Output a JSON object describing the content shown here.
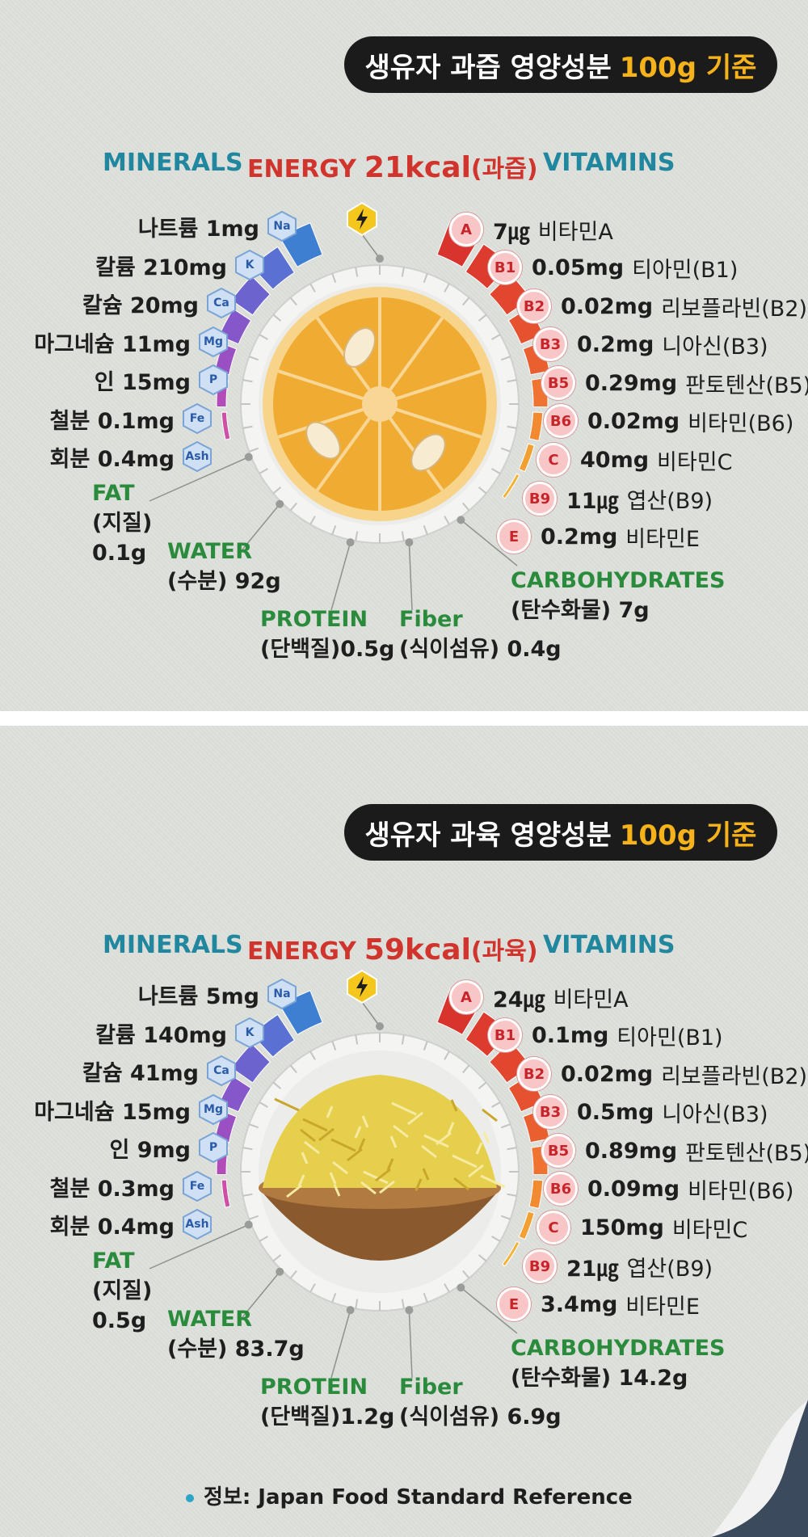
{
  "sections": [
    {
      "id": "juice",
      "title_main": "생유자 과즙 영양성분",
      "title_basis": "100g 기준",
      "header": {
        "minerals": "MINERALS",
        "energy_label": "ENERGY",
        "energy_value": "21kcal",
        "energy_note": "(과즙)",
        "vitamins": "VITAMINS"
      },
      "minerals": [
        {
          "badge": "Na",
          "label": "나트륨 1mg"
        },
        {
          "badge": "K",
          "label": "칼륨 210mg"
        },
        {
          "badge": "Ca",
          "label": "칼슘 20mg"
        },
        {
          "badge": "Mg",
          "label": "마그네슘 11mg"
        },
        {
          "badge": "P",
          "label": "인 15mg"
        },
        {
          "badge": "Fe",
          "label": "철분 0.1mg"
        },
        {
          "badge": "Ash",
          "label": "회분 0.4mg"
        }
      ],
      "vitamins": [
        {
          "badge": "A",
          "value": "7㎍",
          "name": "비타민A"
        },
        {
          "badge": "B1",
          "value": "0.05mg",
          "name": "티아민(B1)"
        },
        {
          "badge": "B2",
          "value": "0.02mg",
          "name": "리보플라빈(B2)"
        },
        {
          "badge": "B3",
          "value": "0.2mg",
          "name": "니아신(B3)"
        },
        {
          "badge": "B5",
          "value": "0.29mg",
          "name": "판토텐산(B5)"
        },
        {
          "badge": "B6",
          "value": "0.02mg",
          "name": "비타민(B6)"
        },
        {
          "badge": "C",
          "value": "40mg",
          "name": "비타민C"
        },
        {
          "badge": "B9",
          "value": "11㎍",
          "name": "엽산(B9)"
        },
        {
          "badge": "E",
          "value": "0.2mg",
          "name": "비타민E"
        }
      ],
      "fat": {
        "name": "FAT",
        "sub": "(지질)",
        "value": "0.1g"
      },
      "water": {
        "name": "WATER",
        "value": "(수분) 92g"
      },
      "protein": {
        "name": "PROTEIN",
        "value": "(단백질)0.5g"
      },
      "fiber": {
        "name": "Fiber",
        "value": "(식이섬유) 0.4g"
      },
      "carbs": {
        "name": "CARBOHYDRATES",
        "value": "(탄수화물) 7g"
      }
    },
    {
      "id": "flesh",
      "title_main": "생유자 과육 영양성분",
      "title_basis": "100g 기준",
      "header": {
        "minerals": "MINERALS",
        "energy_label": "ENERGY",
        "energy_value": "59kcal",
        "energy_note": "(과육)",
        "vitamins": "VITAMINS"
      },
      "minerals": [
        {
          "badge": "Na",
          "label": "나트륨 5mg"
        },
        {
          "badge": "K",
          "label": "칼륨 140mg"
        },
        {
          "badge": "Ca",
          "label": "칼슘 41mg"
        },
        {
          "badge": "Mg",
          "label": "마그네슘 15mg"
        },
        {
          "badge": "P",
          "label": "인 9mg"
        },
        {
          "badge": "Fe",
          "label": "철분 0.3mg"
        },
        {
          "badge": "Ash",
          "label": "회분 0.4mg"
        }
      ],
      "vitamins": [
        {
          "badge": "A",
          "value": "24㎍",
          "name": "비타민A"
        },
        {
          "badge": "B1",
          "value": "0.1mg",
          "name": "티아민(B1)"
        },
        {
          "badge": "B2",
          "value": "0.02mg",
          "name": "리보플라빈(B2)"
        },
        {
          "badge": "B3",
          "value": "0.5mg",
          "name": "니아신(B3)"
        },
        {
          "badge": "B5",
          "value": "0.89mg",
          "name": "판토텐산(B5)"
        },
        {
          "badge": "B6",
          "value": "0.09mg",
          "name": "비타민(B6)"
        },
        {
          "badge": "C",
          "value": "150mg",
          "name": "비타민C"
        },
        {
          "badge": "B9",
          "value": "21㎍",
          "name": "엽산(B9)"
        },
        {
          "badge": "E",
          "value": "3.4mg",
          "name": "비타민E"
        }
      ],
      "fat": {
        "name": "FAT",
        "sub": "(지질)",
        "value": "0.5g"
      },
      "water": {
        "name": "WATER",
        "value": "(수분) 83.7g"
      },
      "protein": {
        "name": "PROTEIN",
        "value": "(단백질)1.2g"
      },
      "fiber": {
        "name": "Fiber",
        "value": "(식이섬유) 6.9g"
      },
      "carbs": {
        "name": "CARBOHYDRATES",
        "value": "(탄수화물) 14.2g"
      }
    }
  ],
  "source": "정보: Japan Food Standard Reference",
  "colors": {
    "minerals": "#20879f",
    "energy": "#d0342c",
    "macro": "#2a8b3c",
    "title_accent": "#f6b21a"
  },
  "icons": {
    "energy": "lightning-bolt-icon",
    "juice_image": "citron-cross-section",
    "flesh_image": "shredded-citron-bowl"
  }
}
